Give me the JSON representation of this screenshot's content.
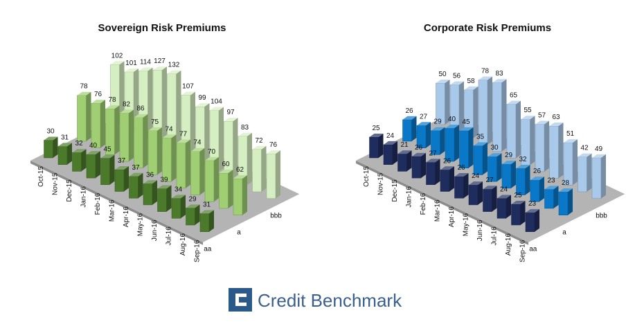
{
  "chart_data": [
    {
      "type": "bar",
      "title": "Sovereign Risk Premiums",
      "categories": [
        "Oct-15",
        "Nov-15",
        "Dec-15",
        "Jan-16",
        "Feb-16",
        "Mar-16",
        "Apr-16",
        "May-16",
        "Jun-16",
        "Jul-16",
        "Aug-16",
        "Sep-16"
      ],
      "series": [
        {
          "name": "aa",
          "color": "#4a7a2a",
          "values": [
            30,
            31,
            32,
            40,
            45,
            37,
            37,
            36,
            39,
            34,
            29,
            31
          ]
        },
        {
          "name": "a",
          "color": "#9fcf72",
          "values": [
            78,
            76,
            78,
            82,
            86,
            75,
            74,
            77,
            74,
            70,
            60,
            62
          ]
        },
        {
          "name": "bbb",
          "color": "#d6efc2",
          "values": [
            102,
            101,
            114,
            127,
            132,
            107,
            99,
            104,
            97,
            83,
            72,
            76
          ]
        }
      ]
    },
    {
      "type": "bar",
      "title": "Corporate Risk Premiums",
      "categories": [
        "Oct-15",
        "Nov-15",
        "Dec-15",
        "Jan-16",
        "Feb-16",
        "Mar-16",
        "Apr-16",
        "May-16",
        "Jun-16",
        "Jul-16",
        "Aug-16",
        "Sep-16"
      ],
      "series": [
        {
          "name": "aa",
          "color": "#1f2d5e",
          "values": [
            25,
            24,
            21,
            26,
            27,
            26,
            26,
            24,
            27,
            24,
            25,
            23
          ]
        },
        {
          "name": "a",
          "color": "#0a78c8",
          "values": [
            26,
            27,
            29,
            40,
            45,
            35,
            30,
            29,
            32,
            26,
            23,
            28
          ]
        },
        {
          "name": "bbb",
          "color": "#a9c9ea",
          "values": [
            50,
            56,
            58,
            78,
            83,
            65,
            55,
            57,
            63,
            51,
            42,
            49
          ]
        }
      ]
    }
  ],
  "brand": {
    "name": "Credit Benchmark"
  }
}
